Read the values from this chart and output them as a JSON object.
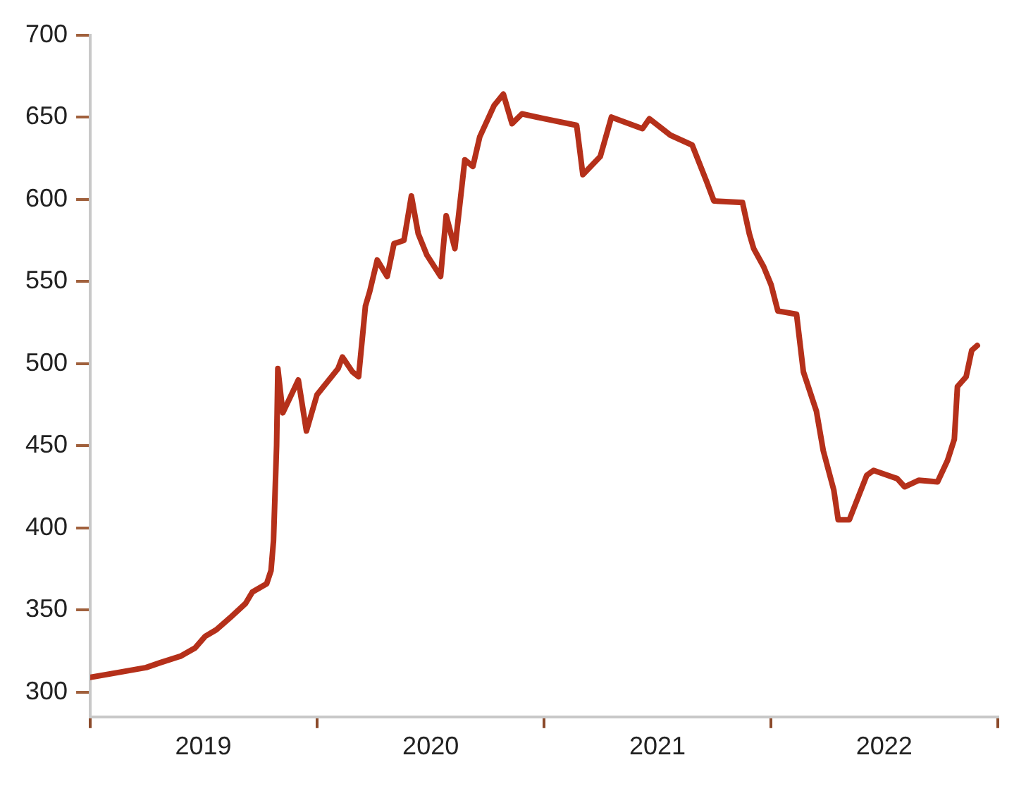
{
  "chart_data": {
    "type": "line",
    "xlim": [
      "2019-01-01",
      "2023-01-01"
    ],
    "ylim": [
      285,
      700
    ],
    "yticks": [
      300,
      350,
      400,
      450,
      500,
      550,
      600,
      650,
      700
    ],
    "xticks": [
      {
        "value": "2019-01-01",
        "label": null
      },
      {
        "value": "2019-07-02",
        "label": "2019"
      },
      {
        "value": "2020-01-01",
        "label": null
      },
      {
        "value": "2020-07-02",
        "label": "2020"
      },
      {
        "value": "2021-01-01",
        "label": null
      },
      {
        "value": "2021-07-02",
        "label": "2021"
      },
      {
        "value": "2022-01-01",
        "label": null
      },
      {
        "value": "2022-07-02",
        "label": "2022"
      },
      {
        "value": "2023-01-01",
        "label": null
      }
    ],
    "grid": false,
    "legend": false,
    "marker": "none",
    "line_style": "solid",
    "series": [
      {
        "color": "#b5301a",
        "x": [
          "2019-01-01",
          "2019-02-15",
          "2019-04-01",
          "2019-04-24",
          "2019-05-27",
          "2019-06-19",
          "2019-07-05",
          "2019-07-23",
          "2019-08-16",
          "2019-09-08",
          "2019-09-19",
          "2019-10-12",
          "2019-10-19",
          "2019-10-23",
          "2019-10-28",
          "2019-10-30",
          "2019-11-07",
          "2019-12-02",
          "2019-12-15",
          "2020-01-01",
          "2020-02-04",
          "2020-02-11",
          "2020-02-27",
          "2020-03-08",
          "2020-03-19",
          "2020-03-26",
          "2020-04-07",
          "2020-04-23",
          "2020-05-04",
          "2020-05-20",
          "2020-06-01",
          "2020-06-12",
          "2020-06-26",
          "2020-07-18",
          "2020-07-27",
          "2020-08-10",
          "2020-08-26",
          "2020-09-08",
          "2020-09-19",
          "2020-10-12",
          "2020-10-27",
          "2020-11-10",
          "2020-11-26",
          "2021-01-01",
          "2021-02-22",
          "2021-03-04",
          "2021-04-01",
          "2021-04-19",
          "2021-06-08",
          "2021-06-19",
          "2021-07-23",
          "2021-08-27",
          "2021-09-19",
          "2021-10-01",
          "2021-11-16",
          "2021-11-27",
          "2021-12-04",
          "2021-12-20",
          "2022-01-01",
          "2022-01-12",
          "2022-02-11",
          "2022-02-22",
          "2022-03-15",
          "2022-03-26",
          "2022-04-12",
          "2022-04-19",
          "2022-05-07",
          "2022-06-04",
          "2022-06-15",
          "2022-07-23",
          "2022-08-04",
          "2022-08-27",
          "2022-09-26",
          "2022-10-12",
          "2022-10-23",
          "2022-10-28",
          "2022-11-11",
          "2022-11-20",
          "2022-11-29"
        ],
        "values": [
          309,
          312,
          315,
          318,
          322,
          327,
          334,
          338,
          346,
          354,
          361,
          366,
          374,
          392,
          450,
          497,
          470,
          490,
          459,
          481,
          497,
          504,
          495,
          492,
          535,
          544,
          563,
          553,
          573,
          575,
          602,
          579,
          566,
          553,
          590,
          570,
          624,
          620,
          638,
          657,
          664,
          646,
          652,
          649,
          645,
          615,
          626,
          650,
          643,
          649,
          639,
          633,
          611,
          599,
          598,
          579,
          570,
          559,
          548,
          532,
          530,
          495,
          471,
          447,
          423,
          405,
          405,
          432,
          435,
          430,
          425,
          429,
          428,
          441,
          454,
          486,
          492,
          508,
          511
        ]
      }
    ]
  }
}
